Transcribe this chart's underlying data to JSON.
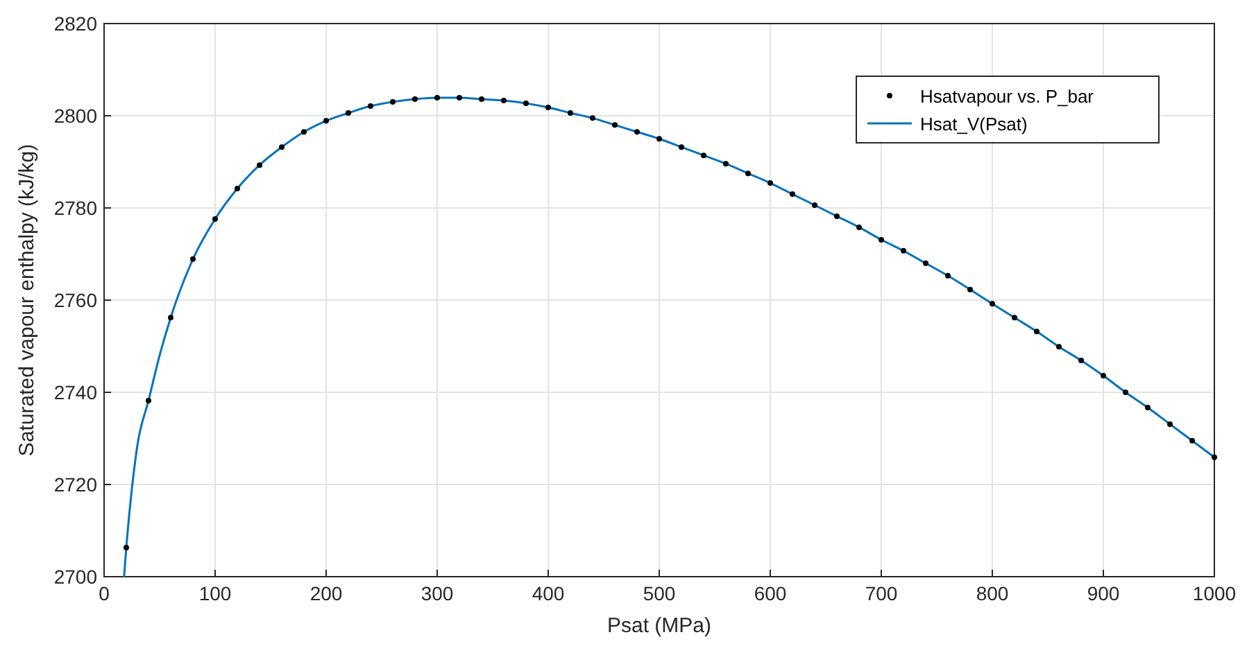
{
  "chart_data": {
    "type": "scatter",
    "xlabel": "Psat (MPa)",
    "ylabel": "Saturated vapour enthalpy (kJ/kg)",
    "xlim": [
      0,
      1000
    ],
    "ylim": [
      2700,
      2820
    ],
    "xticks": [
      0,
      100,
      200,
      300,
      400,
      500,
      600,
      700,
      800,
      900,
      1000
    ],
    "yticks": [
      2700,
      2720,
      2740,
      2760,
      2780,
      2800,
      2820
    ],
    "grid": true,
    "legend": "top right",
    "series": [
      {
        "name": "Hsatvapour vs. P_bar",
        "marker": "circle",
        "color": "#000000",
        "x": [
          20,
          40,
          60,
          80,
          100,
          120,
          140,
          160,
          180,
          200,
          220,
          240,
          260,
          280,
          300,
          320,
          340,
          360,
          380,
          400,
          420,
          440,
          460,
          480,
          500,
          520,
          540,
          560,
          580,
          600,
          620,
          640,
          660,
          680,
          700,
          720,
          740,
          760,
          780,
          800,
          820,
          840,
          860,
          880,
          900,
          920,
          940,
          960,
          980,
          1000
        ],
        "values": [
          2706.3,
          2738.2,
          2756.2,
          2768.9,
          2777.6,
          2784.2,
          2789.3,
          2793.2,
          2796.5,
          2798.9,
          2800.6,
          2802.1,
          2803,
          2803.6,
          2803.9,
          2803.9,
          2803.6,
          2803.3,
          2802.7,
          2801.8,
          2800.6,
          2799.5,
          2798,
          2796.5,
          2795,
          2793.2,
          2791.4,
          2789.6,
          2787.5,
          2785.4,
          2783,
          2780.6,
          2778.2,
          2775.8,
          2773.1,
          2770.7,
          2768,
          2765.3,
          2762.3,
          2759.2,
          2756.2,
          2753.2,
          2749.9,
          2746.9,
          2743.6,
          2740,
          2736.7,
          2733.1,
          2729.5,
          2725.9
        ]
      },
      {
        "name": "Hsat_V(Psat)",
        "type": "line",
        "marker": "none",
        "line_style": "solid",
        "color": "#0072bd",
        "x": [
          18,
          20,
          25,
          30,
          40,
          50,
          60,
          80,
          100,
          120,
          140,
          160,
          180,
          200,
          220,
          240,
          260,
          280,
          300,
          320,
          340,
          360,
          380,
          400,
          420,
          440,
          460,
          480,
          500,
          520,
          540,
          560,
          580,
          600,
          620,
          640,
          660,
          680,
          700,
          720,
          740,
          760,
          780,
          800,
          820,
          840,
          860,
          880,
          900,
          920,
          940,
          960,
          980,
          1000
        ],
        "values": [
          2700,
          2706.3,
          2719,
          2728.5,
          2738.2,
          2748,
          2756.2,
          2768.9,
          2777.6,
          2784.2,
          2789.3,
          2793.2,
          2796.5,
          2798.9,
          2800.6,
          2802.1,
          2803,
          2803.6,
          2803.9,
          2803.9,
          2803.6,
          2803.3,
          2802.7,
          2801.8,
          2800.6,
          2799.5,
          2798,
          2796.5,
          2795,
          2793.2,
          2791.4,
          2789.6,
          2787.5,
          2785.4,
          2783,
          2780.6,
          2778.2,
          2775.8,
          2773.1,
          2770.7,
          2768,
          2765.3,
          2762.3,
          2759.2,
          2756.2,
          2753.2,
          2749.9,
          2746.9,
          2743.6,
          2740,
          2736.7,
          2733.1,
          2729.5,
          2725.9
        ]
      }
    ]
  }
}
